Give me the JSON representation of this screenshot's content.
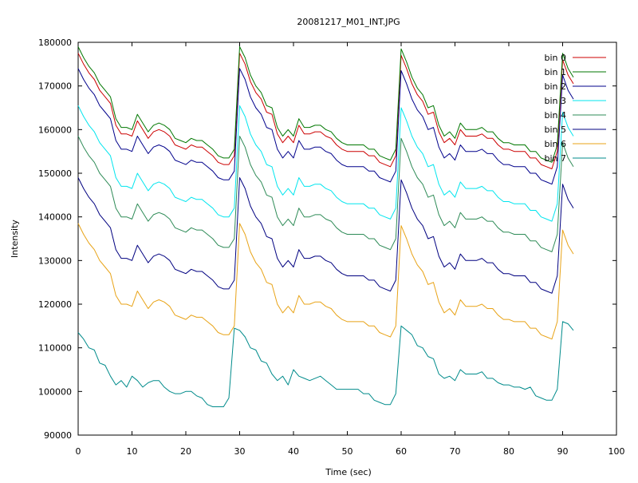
{
  "chart_data": {
    "type": "line",
    "title": "20081217_M01_INT.JPG",
    "xlabel": "Time (sec)",
    "ylabel": "Intensity",
    "xlim": [
      0,
      100
    ],
    "ylim": [
      90000,
      180000
    ],
    "grid": false,
    "legend_position": "top-right",
    "x_ticks": [
      "0",
      "10",
      "20",
      "30",
      "40",
      "50",
      "60",
      "70",
      "80",
      "90",
      "100"
    ],
    "y_ticks": [
      "90000",
      "100000",
      "110000",
      "120000",
      "130000",
      "140000",
      "150000",
      "160000",
      "170000",
      "180000"
    ],
    "x": [
      0,
      1,
      2,
      3,
      4,
      5,
      6,
      7,
      8,
      9,
      10,
      11,
      12,
      13,
      14,
      15,
      16,
      17,
      18,
      19,
      20,
      21,
      22,
      23,
      24,
      25,
      26,
      27,
      28,
      29,
      30,
      31,
      32,
      33,
      34,
      35,
      36,
      37,
      38,
      39,
      40,
      41,
      42,
      43,
      44,
      45,
      46,
      47,
      48,
      49,
      50,
      51,
      52,
      53,
      54,
      55,
      56,
      57,
      58,
      59,
      60,
      61,
      62,
      63,
      64,
      65,
      66,
      67,
      68,
      69,
      70,
      71,
      72,
      73,
      74,
      75,
      76,
      77,
      78,
      79,
      80,
      81,
      82,
      83,
      84,
      85,
      86,
      87,
      88,
      89,
      90,
      91,
      92
    ],
    "series": [
      {
        "name": "bin 0",
        "color": "#cc0000",
        "values": [
          177500,
          175000,
          173000,
          171500,
          169000,
          167500,
          166000,
          161000,
          159000,
          159000,
          158500,
          162000,
          160000,
          158000,
          159500,
          160000,
          159500,
          158500,
          156500,
          156000,
          155500,
          156500,
          156000,
          156000,
          155000,
          154000,
          152500,
          152000,
          152000,
          154000,
          177500,
          175000,
          171000,
          168500,
          167000,
          164000,
          163500,
          159000,
          157000,
          158500,
          157000,
          161000,
          159000,
          159000,
          159500,
          159500,
          158500,
          158000,
          156500,
          155500,
          155000,
          155000,
          155000,
          155000,
          154000,
          154000,
          152500,
          152000,
          151500,
          154000,
          177000,
          174000,
          170500,
          168000,
          166500,
          163500,
          164000,
          159500,
          157000,
          158000,
          156500,
          160000,
          158500,
          158500,
          158500,
          159000,
          158000,
          158000,
          156500,
          155500,
          155500,
          155000,
          155000,
          155000,
          153500,
          153500,
          152000,
          151500,
          151000,
          155000,
          176000,
          172500,
          170500
        ]
      },
      {
        "name": "bin 1",
        "color": "#007700",
        "values": [
          179000,
          176500,
          174500,
          173000,
          170500,
          169000,
          167500,
          162500,
          160500,
          160500,
          160000,
          163500,
          161500,
          159500,
          161000,
          161500,
          161000,
          160000,
          158000,
          157500,
          157000,
          158000,
          157500,
          157500,
          156500,
          155500,
          154000,
          153500,
          153500,
          155500,
          179000,
          176500,
          172500,
          170000,
          168500,
          165500,
          165000,
          160500,
          158500,
          160000,
          158500,
          162500,
          160500,
          160500,
          161000,
          161000,
          160000,
          159500,
          158000,
          157000,
          156500,
          156500,
          156500,
          156500,
          155500,
          155500,
          154000,
          153500,
          153000,
          155500,
          178500,
          175500,
          172000,
          169500,
          168000,
          165000,
          165500,
          161000,
          158500,
          159500,
          158000,
          161500,
          160000,
          160000,
          160000,
          160500,
          159500,
          159500,
          158000,
          157000,
          157000,
          156500,
          156500,
          156500,
          155000,
          155000,
          153500,
          153000,
          152500,
          156500,
          177500,
          174000,
          172000
        ]
      },
      {
        "name": "bin 2",
        "color": "#00008b",
        "values": [
          174000,
          171500,
          169500,
          168000,
          165500,
          164000,
          162500,
          157500,
          155500,
          155500,
          155000,
          158500,
          156500,
          154500,
          156000,
          156500,
          156000,
          155000,
          153000,
          152500,
          152000,
          153000,
          152500,
          152500,
          151500,
          150500,
          149000,
          148500,
          148500,
          150500,
          174000,
          171500,
          167500,
          165000,
          163500,
          160500,
          160000,
          155500,
          153500,
          155000,
          153500,
          157500,
          155500,
          155500,
          156000,
          156000,
          155000,
          154500,
          153000,
          152000,
          151500,
          151500,
          151500,
          151500,
          150500,
          150500,
          149000,
          148500,
          148000,
          150500,
          173500,
          170500,
          167000,
          164500,
          163000,
          160000,
          160500,
          156000,
          153500,
          154500,
          153000,
          156500,
          155000,
          155000,
          155000,
          155500,
          154500,
          154500,
          153000,
          152000,
          152000,
          151500,
          151500,
          151500,
          150000,
          150000,
          148500,
          148000,
          147500,
          151500,
          172500,
          169000,
          167000
        ]
      },
      {
        "name": "bin 3",
        "color": "#00e5ee",
        "values": [
          165500,
          163000,
          161000,
          159500,
          157000,
          155500,
          154000,
          149000,
          147000,
          147000,
          146500,
          150000,
          148000,
          146000,
          147500,
          148000,
          147500,
          146500,
          144500,
          144000,
          143500,
          144500,
          144000,
          144000,
          143000,
          142000,
          140500,
          140000,
          140000,
          142000,
          165500,
          163000,
          159000,
          156500,
          155000,
          152000,
          151500,
          147000,
          145000,
          146500,
          145000,
          149000,
          147000,
          147000,
          147500,
          147500,
          146500,
          146000,
          144500,
          143500,
          143000,
          143000,
          143000,
          143000,
          142000,
          142000,
          140500,
          140000,
          139500,
          142000,
          165000,
          162000,
          158500,
          156000,
          154500,
          151500,
          152000,
          147500,
          145000,
          146000,
          144500,
          148000,
          146500,
          146500,
          146500,
          147000,
          146000,
          146000,
          144500,
          143500,
          143500,
          143000,
          143000,
          143000,
          141500,
          141500,
          140000,
          139500,
          139000,
          143000,
          164000,
          160500,
          158500
        ]
      },
      {
        "name": "bin 4",
        "color": "#2e8b57",
        "values": [
          158500,
          156000,
          154000,
          152500,
          150000,
          148500,
          147000,
          142000,
          140000,
          140000,
          139500,
          143000,
          141000,
          139000,
          140500,
          141000,
          140500,
          139500,
          137500,
          137000,
          136500,
          137500,
          137000,
          137000,
          136000,
          135000,
          133500,
          133000,
          133000,
          135000,
          158500,
          156000,
          152000,
          149500,
          148000,
          145000,
          144500,
          140000,
          138000,
          139500,
          138000,
          142000,
          140000,
          140000,
          140500,
          140500,
          139500,
          139000,
          137500,
          136500,
          136000,
          136000,
          136000,
          136000,
          135000,
          135000,
          133500,
          133000,
          132500,
          135000,
          158000,
          155000,
          151500,
          149000,
          147500,
          144500,
          145000,
          140500,
          138000,
          139000,
          137500,
          141000,
          139500,
          139500,
          139500,
          140000,
          139000,
          139000,
          137500,
          136500,
          136500,
          136000,
          136000,
          136000,
          134500,
          134500,
          133000,
          132500,
          132000,
          136000,
          157000,
          153500,
          151500
        ]
      },
      {
        "name": "bin 5",
        "color": "#000080",
        "values": [
          149000,
          146500,
          144500,
          143000,
          140500,
          139000,
          137500,
          132500,
          130500,
          130500,
          130000,
          133500,
          131500,
          129500,
          131000,
          131500,
          131000,
          130000,
          128000,
          127500,
          127000,
          128000,
          127500,
          127500,
          126500,
          125500,
          124000,
          123500,
          123500,
          125500,
          149000,
          146500,
          142500,
          140000,
          138500,
          135500,
          135000,
          130500,
          128500,
          130000,
          128500,
          132500,
          130500,
          130500,
          131000,
          131000,
          130000,
          129500,
          128000,
          127000,
          126500,
          126500,
          126500,
          126500,
          125500,
          125500,
          124000,
          123500,
          123000,
          125500,
          148500,
          145500,
          142000,
          139500,
          138000,
          135000,
          135500,
          131000,
          128500,
          129500,
          128000,
          131500,
          130000,
          130000,
          130000,
          130500,
          129500,
          129500,
          128000,
          127000,
          127000,
          126500,
          126500,
          126500,
          125000,
          125000,
          123500,
          123000,
          122500,
          126500,
          147500,
          144000,
          142000
        ]
      },
      {
        "name": "bin 6",
        "color": "#e8a317",
        "values": [
          138500,
          136000,
          134000,
          132500,
          130000,
          128500,
          127000,
          122000,
          120000,
          120000,
          119500,
          123000,
          121000,
          119000,
          120500,
          121000,
          120500,
          119500,
          117500,
          117000,
          116500,
          117500,
          117000,
          117000,
          116000,
          115000,
          113500,
          113000,
          113000,
          115000,
          138500,
          136000,
          132000,
          129500,
          128000,
          125000,
          124500,
          120000,
          118000,
          119500,
          118000,
          122000,
          120000,
          120000,
          120500,
          120500,
          119500,
          119000,
          117500,
          116500,
          116000,
          116000,
          116000,
          116000,
          115000,
          115000,
          113500,
          113000,
          112500,
          115000,
          138000,
          135000,
          131500,
          129000,
          127500,
          124500,
          125000,
          120500,
          118000,
          119000,
          117500,
          121000,
          119500,
          119500,
          119500,
          120000,
          119000,
          119000,
          117500,
          116500,
          116500,
          116000,
          116000,
          116000,
          114500,
          114500,
          113000,
          112500,
          112000,
          116000,
          137000,
          133500,
          131500
        ]
      },
      {
        "name": "bin 7",
        "color": "#008b8b",
        "values": [
          113500,
          112000,
          110000,
          109500,
          106500,
          106000,
          103500,
          101500,
          102500,
          101000,
          103500,
          102500,
          101000,
          102000,
          102500,
          102500,
          101000,
          100000,
          99500,
          99500,
          100000,
          100000,
          99000,
          98500,
          97000,
          96500,
          96500,
          96500,
          98500,
          114500,
          114000,
          112500,
          110000,
          109500,
          107000,
          106500,
          104000,
          102500,
          103500,
          101500,
          105000,
          103500,
          103000,
          102500,
          103000,
          103500,
          102500,
          101500,
          100500,
          100500,
          100500,
          100500,
          100500,
          99500,
          99500,
          98000,
          97500,
          97000,
          97000,
          99500,
          115000,
          114000,
          113000,
          110500,
          110000,
          108000,
          107500,
          104000,
          103000,
          103500,
          102500,
          105000,
          104000,
          104000,
          104000,
          104500,
          103000,
          103000,
          102000,
          101500,
          101500,
          101000,
          101000,
          100500,
          101000,
          99000,
          98500,
          98000,
          98000,
          100500,
          116000,
          115500,
          114000
        ]
      }
    ]
  }
}
